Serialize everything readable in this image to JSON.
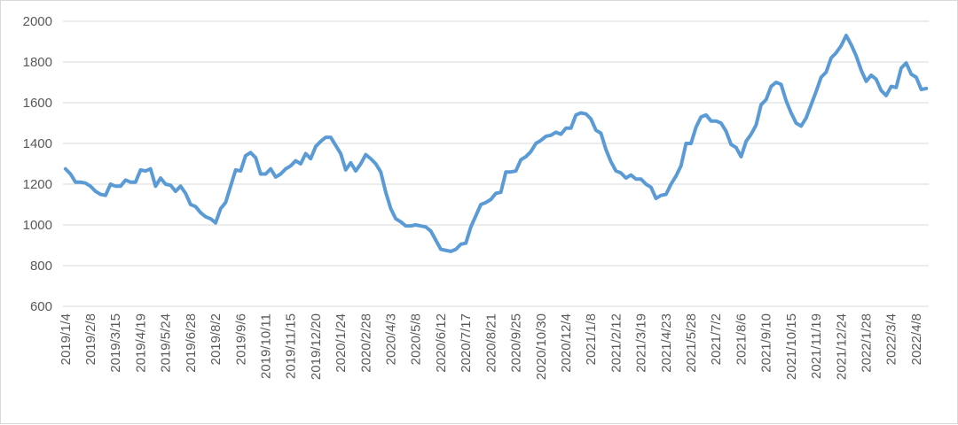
{
  "chart_data": {
    "type": "line",
    "title": "",
    "xlabel": "",
    "ylabel": "",
    "ylim": [
      600,
      2000
    ],
    "y_ticks": [
      600,
      800,
      1000,
      1200,
      1400,
      1600,
      1800,
      2000
    ],
    "grid": true,
    "legend": "none",
    "series_color": "#5b9bd5",
    "x_tick_labels": [
      "2019/1/4",
      "2019/2/8",
      "2019/3/15",
      "2019/4/19",
      "2019/5/24",
      "2019/6/28",
      "2019/8/2",
      "2019/9/6",
      "2019/10/11",
      "2019/11/15",
      "2019/12/20",
      "2020/1/24",
      "2020/2/28",
      "2020/4/3",
      "2020/5/8",
      "2020/6/12",
      "2020/7/17",
      "2020/8/21",
      "2020/9/25",
      "2020/10/30",
      "2020/12/4",
      "2021/1/8",
      "2021/2/12",
      "2021/3/19",
      "2021/4/23",
      "2021/5/28",
      "2021/7/2",
      "2021/8/6",
      "2021/9/10",
      "2021/10/15",
      "2021/11/19",
      "2021/12/24",
      "2022/1/28",
      "2022/3/4",
      "2022/4/8"
    ],
    "series": [
      {
        "values": [
          1275,
          1250,
          1210,
          1210,
          1205,
          1190,
          1165,
          1150,
          1145,
          1200,
          1190,
          1190,
          1220,
          1210,
          1210,
          1270,
          1265,
          1275,
          1190,
          1230,
          1200,
          1195,
          1165,
          1190,
          1155,
          1100,
          1090,
          1060,
          1040,
          1030,
          1010,
          1080,
          1110,
          1190,
          1270,
          1265,
          1340,
          1355,
          1330,
          1250,
          1250,
          1275,
          1235,
          1250,
          1275,
          1290,
          1315,
          1300,
          1350,
          1325,
          1385,
          1410,
          1430,
          1430,
          1390,
          1350,
          1270,
          1305,
          1265,
          1300,
          1345,
          1325,
          1300,
          1260,
          1160,
          1080,
          1030,
          1015,
          995,
          995,
          1000,
          995,
          990,
          970,
          925,
          880,
          875,
          870,
          880,
          905,
          910,
          990,
          1045,
          1100,
          1110,
          1125,
          1155,
          1160,
          1260,
          1260,
          1265,
          1320,
          1335,
          1360,
          1400,
          1415,
          1435,
          1440,
          1455,
          1445,
          1475,
          1475,
          1540,
          1550,
          1545,
          1520,
          1465,
          1450,
          1370,
          1310,
          1265,
          1255,
          1230,
          1245,
          1225,
          1225,
          1200,
          1185,
          1130,
          1145,
          1150,
          1200,
          1240,
          1290,
          1400,
          1400,
          1480,
          1530,
          1540,
          1510,
          1510,
          1500,
          1460,
          1395,
          1380,
          1335,
          1410,
          1445,
          1490,
          1590,
          1615,
          1680,
          1700,
          1690,
          1610,
          1550,
          1500,
          1485,
          1525,
          1590,
          1655,
          1725,
          1750,
          1820,
          1845,
          1880,
          1930,
          1885,
          1830,
          1760,
          1705,
          1735,
          1715,
          1660,
          1635,
          1680,
          1675,
          1770,
          1795,
          1740,
          1725,
          1665,
          1670
        ]
      }
    ]
  }
}
